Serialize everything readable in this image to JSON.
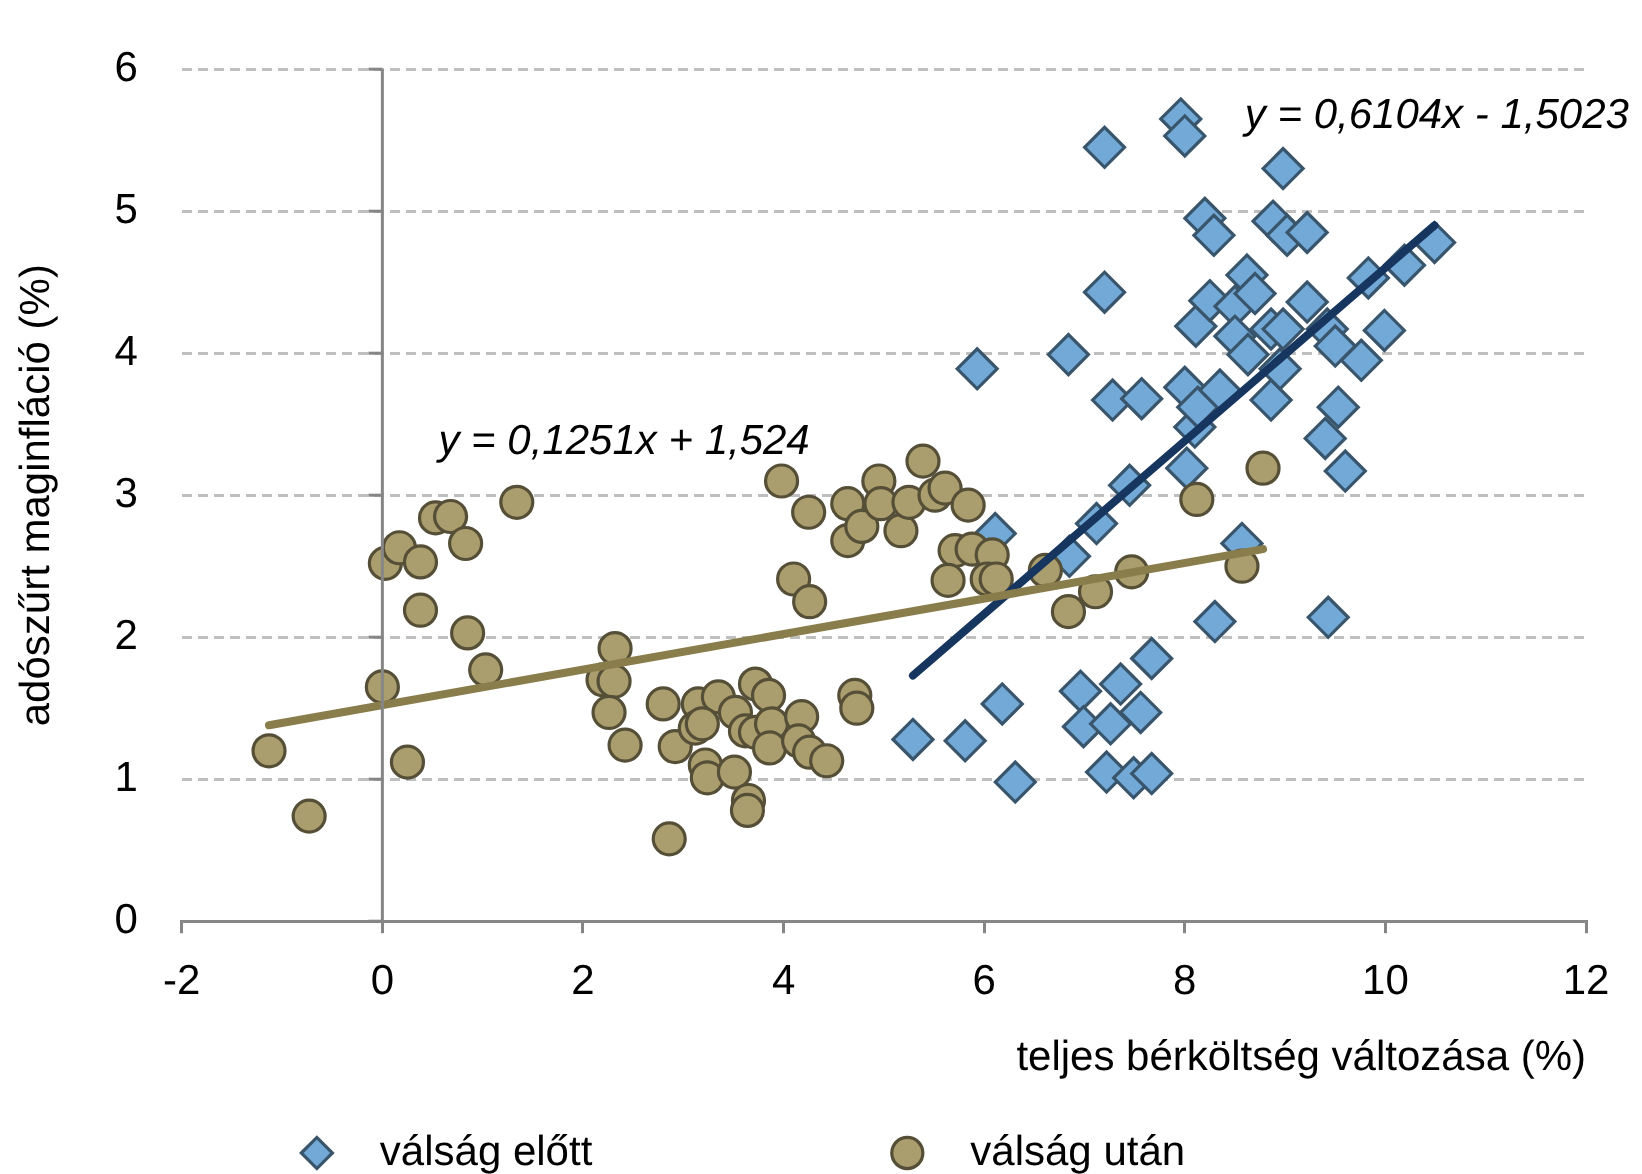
{
  "chart_data": {
    "type": "scatter",
    "xlabel": "teljes bérköltség változása (%)",
    "ylabel": "adószűrt maginfláció (%)",
    "xlim": [
      -2,
      12
    ],
    "ylim": [
      0,
      6
    ],
    "xticks": [
      -2,
      0,
      2,
      4,
      6,
      8,
      10,
      12
    ],
    "yticks": [
      0,
      1,
      2,
      3,
      4,
      5,
      6
    ],
    "grid": "y",
    "legend": "bottom",
    "ref_lines": [
      {
        "axis": "x",
        "value": 0,
        "color": "#868686"
      }
    ],
    "annotations": [
      "y = 0,1251x + 1,524",
      "y = 0,6104x - 1,5023"
    ],
    "series": [
      {
        "name": "válság előtt",
        "type": "scatter",
        "marker": "diamond",
        "color": "#72a9d7",
        "x": [
          5.29,
          5.81,
          6.18,
          6.31,
          6.96,
          6.99,
          7.36,
          7.26,
          7.56,
          7.67,
          7.22,
          7.49,
          7.67,
          8.3,
          9.43,
          8.57,
          5.93,
          6.84,
          7.28,
          7.57,
          8.0,
          6.11,
          6.85,
          7.12,
          7.45,
          8.02,
          8.1,
          8.13,
          8.35,
          8.11,
          8.25,
          8.5,
          8.5,
          8.63,
          8.86,
          7.96,
          8.0,
          7.2,
          8.98,
          8.2,
          8.29,
          8.88,
          9.02,
          9.22,
          7.2,
          8.62,
          8.7,
          8.86,
          8.98,
          9.22,
          9.42,
          9.5,
          9.76,
          9.99,
          9.83,
          10.19,
          10.49,
          9.53,
          9.4,
          8.95,
          9.6
        ],
        "values": [
          1.28,
          1.27,
          1.53,
          0.98,
          1.62,
          1.37,
          1.67,
          1.39,
          1.47,
          1.85,
          1.05,
          1.01,
          1.04,
          2.11,
          2.14,
          2.66,
          3.89,
          3.99,
          3.67,
          3.68,
          3.76,
          2.73,
          2.57,
          2.8,
          3.07,
          3.19,
          3.48,
          3.62,
          3.74,
          4.19,
          4.37,
          4.33,
          4.12,
          3.99,
          3.67,
          5.65,
          5.53,
          5.45,
          5.3,
          4.95,
          4.83,
          4.93,
          4.83,
          4.85,
          4.43,
          4.55,
          4.42,
          4.17,
          4.17,
          4.36,
          4.17,
          4.05,
          3.95,
          4.16,
          4.53,
          4.62,
          4.78,
          3.62,
          3.4,
          3.89,
          3.17
        ]
      },
      {
        "name": "válság után",
        "type": "scatter",
        "marker": "circle",
        "color": "#ab9e6e",
        "x": [
          -1.13,
          -0.73,
          0,
          0.03,
          0.17,
          0.25,
          0.38,
          0.38,
          0.53,
          0.68,
          0.83,
          0.85,
          1.03,
          1.34,
          2.32,
          2.2,
          2.31,
          2.26,
          2.42,
          2.8,
          2.92,
          2.86,
          3.15,
          3.35,
          3.12,
          3.19,
          3.52,
          3.72,
          3.85,
          3.62,
          3.72,
          3.88,
          3.86,
          4.18,
          4.15,
          4.26,
          4.43,
          3.22,
          3.24,
          3.51,
          3.65,
          3.64,
          4.71,
          4.73,
          3.98,
          4.25,
          4.1,
          4.26,
          4.64,
          4.64,
          4.78,
          4.95,
          4.97,
          5.17,
          5.25,
          5.39,
          5.51,
          5.61,
          5.71,
          5.64,
          5.84,
          5.88,
          6.08,
          6.03,
          6.12,
          6.61,
          7.11,
          6.84,
          7.47,
          8.12,
          8.57,
          8.78
        ],
        "values": [
          1.2,
          0.74,
          1.65,
          2.52,
          2.63,
          1.12,
          2.53,
          2.19,
          2.84,
          2.85,
          2.66,
          2.03,
          1.77,
          2.95,
          1.92,
          1.7,
          1.69,
          1.47,
          1.24,
          1.53,
          1.23,
          0.58,
          1.53,
          1.58,
          1.36,
          1.39,
          1.47,
          1.67,
          1.59,
          1.34,
          1.33,
          1.39,
          1.22,
          1.44,
          1.27,
          1.19,
          1.13,
          1.1,
          1.01,
          1.05,
          0.85,
          0.78,
          1.59,
          1.5,
          3.1,
          2.88,
          2.41,
          2.25,
          2.94,
          2.68,
          2.78,
          3.1,
          2.94,
          2.75,
          2.95,
          3.24,
          3.0,
          3.05,
          2.61,
          2.4,
          2.93,
          2.62,
          2.58,
          2.41,
          2.41,
          2.47,
          2.32,
          2.18,
          2.46,
          2.97,
          2.5,
          3.19
        ]
      },
      {
        "type": "line",
        "marker": "none",
        "line_style": "solid",
        "color": "#17365f",
        "x": [
          5.29,
          10.49
        ],
        "values": [
          1.73,
          4.9
        ]
      },
      {
        "type": "line",
        "marker": "none",
        "line_style": "solid",
        "color": "#8a7d4c",
        "x": [
          -1.13,
          8.78
        ],
        "values": [
          1.38,
          2.62
        ]
      }
    ]
  }
}
